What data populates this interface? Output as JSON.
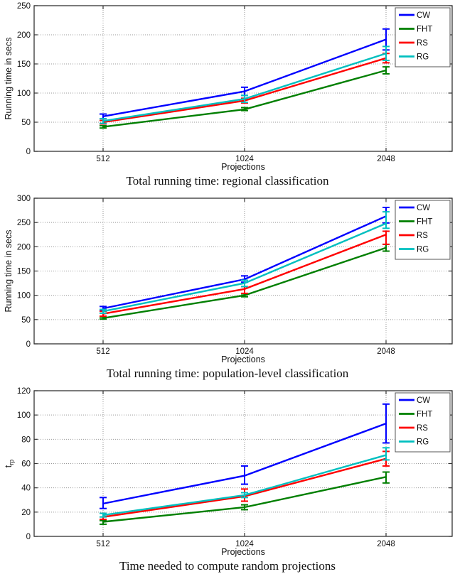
{
  "page": {
    "background": "#ffffff"
  },
  "chart_data": [
    {
      "type": "line",
      "caption": "Total running time: regional classification",
      "xlabel": "Projections",
      "ylabel": "Running time in secs",
      "categories": [
        "512",
        "1024",
        "2048"
      ],
      "ylim": [
        0,
        250
      ],
      "ytick_step": 50,
      "grid": true,
      "legend_position": "top-right",
      "series": [
        {
          "name": "CW",
          "color": "#0000FF",
          "values": [
            60,
            103,
            192
          ],
          "err_lo": [
            56,
            96,
            174
          ],
          "err_hi": [
            64,
            110,
            210
          ]
        },
        {
          "name": "FHT",
          "color": "#007F00",
          "values": [
            42,
            72,
            139
          ],
          "err_lo": [
            40,
            70,
            133
          ],
          "err_hi": [
            44,
            75,
            145
          ]
        },
        {
          "name": "RS",
          "color": "#FF0000",
          "values": [
            50,
            87,
            160
          ],
          "err_lo": [
            47,
            83,
            152
          ],
          "err_hi": [
            53,
            91,
            168
          ]
        },
        {
          "name": "RG",
          "color": "#00BFBF",
          "values": [
            52,
            90,
            168
          ],
          "err_lo": [
            48,
            84,
            156
          ],
          "err_hi": [
            56,
            96,
            180
          ]
        }
      ]
    },
    {
      "type": "line",
      "caption": "Total running time: population-level classification",
      "xlabel": "Projections",
      "ylabel": "Running time in secs",
      "categories": [
        "512",
        "1024",
        "2048"
      ],
      "ylim": [
        0,
        300
      ],
      "ytick_step": 50,
      "grid": true,
      "legend_position": "top-right",
      "series": [
        {
          "name": "CW",
          "color": "#0000FF",
          "values": [
            73,
            133,
            263
          ],
          "err_lo": [
            69,
            127,
            249
          ],
          "err_hi": [
            77,
            140,
            281
          ]
        },
        {
          "name": "FHT",
          "color": "#007F00",
          "values": [
            53,
            100,
            198
          ],
          "err_lo": [
            51,
            97,
            191
          ],
          "err_hi": [
            55,
            103,
            205
          ]
        },
        {
          "name": "RS",
          "color": "#FF0000",
          "values": [
            62,
            113,
            225
          ],
          "err_lo": [
            57,
            104,
            205
          ],
          "err_hi": [
            67,
            118,
            232
          ]
        },
        {
          "name": "RG",
          "color": "#00BFBF",
          "values": [
            67,
            125,
            248
          ],
          "err_lo": [
            63,
            118,
            238
          ],
          "err_hi": [
            71,
            131,
            272
          ]
        }
      ]
    },
    {
      "type": "line",
      "caption": "Time needed to compute random projections",
      "xlabel": "Projections",
      "ylabel": "t",
      "ylabel_sub": "rp",
      "categories": [
        "512",
        "1024",
        "2048"
      ],
      "ylim": [
        0,
        120
      ],
      "ytick_step": 20,
      "grid": true,
      "legend_position": "top-right",
      "series": [
        {
          "name": "CW",
          "color": "#0000FF",
          "values": [
            27,
            50,
            93
          ],
          "err_lo": [
            23,
            43,
            77
          ],
          "err_hi": [
            32,
            58,
            109
          ]
        },
        {
          "name": "FHT",
          "color": "#007F00",
          "values": [
            12,
            24,
            49
          ],
          "err_lo": [
            10,
            22,
            44
          ],
          "err_hi": [
            13,
            26,
            53
          ]
        },
        {
          "name": "RS",
          "color": "#FF0000",
          "values": [
            16,
            33,
            64
          ],
          "err_lo": [
            14,
            29,
            58
          ],
          "err_hi": [
            19,
            39,
            70
          ]
        },
        {
          "name": "RG",
          "color": "#00BFBF",
          "values": [
            17.5,
            34,
            67
          ],
          "err_lo": [
            16,
            32,
            63
          ],
          "err_hi": [
            19,
            36,
            73
          ]
        }
      ]
    }
  ]
}
